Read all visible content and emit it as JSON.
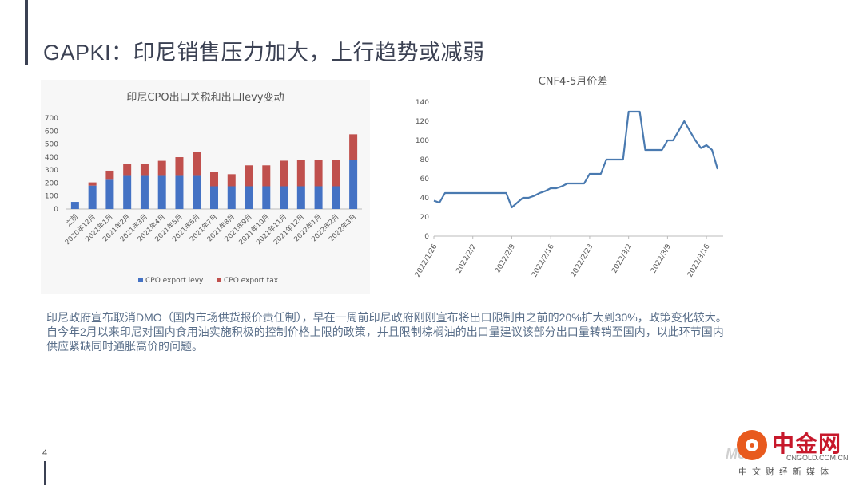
{
  "slide": {
    "title": "GAPKI：印尼销售压力加大，上行趋势或减弱",
    "page_number": "4",
    "paragraphs": [
      "印尼政府宣布取消DMO（国内市场供货报价责任制），早在一周前印尼政府刚刚宣布将出口限制由之前的20%扩大到30%，政策变化较大。",
      "自今年2月以来印尼对国内食用油实施积极的控制价格上限的政策，并且限制棕榈油的出口量建议该部分出口量转销至国内，以此环节国内",
      "供应紧缺同时通胀高价的问题。"
    ]
  },
  "logo": {
    "cn_name": "中金网",
    "watermark": "Mo",
    "url": "CNGOLD.COM.CN",
    "tagline": "中文财经新媒体"
  },
  "chart_data": [
    {
      "type": "bar",
      "title": "印尼CPO出口关税和出口levy变动",
      "categories": [
        "之前",
        "2020年12月",
        "2021年1月",
        "2021年2月",
        "2021年3月",
        "2021年4月",
        "2021年5月",
        "2021年6月",
        "2021年7月",
        "2021年8月",
        "2021年9月",
        "2021年10月",
        "2021年11月",
        "2021年12月",
        "2022年1月",
        "2022年2月",
        "2022年3月"
      ],
      "stacked": true,
      "series": [
        {
          "name": "CPO export levy",
          "color": "#4472c4",
          "values": [
            55,
            180,
            225,
            255,
            255,
            255,
            255,
            255,
            175,
            175,
            175,
            175,
            175,
            175,
            175,
            175,
            375
          ]
        },
        {
          "name": "CPO export tax",
          "color": "#c0504d",
          "values": [
            0,
            25,
            70,
            93,
            93,
            116,
            144,
            183,
            113,
            93,
            161,
            161,
            197,
            200,
            200,
            200,
            200
          ]
        }
      ],
      "yticks": [
        0,
        100,
        200,
        300,
        400,
        500,
        600,
        700
      ],
      "ylim": [
        0,
        700
      ],
      "legend_position": "bottom",
      "grid": false
    },
    {
      "type": "line",
      "title": "CNF4-5月价差",
      "xtick_labels": [
        "2022/1/26",
        "2022/2/2",
        "2022/2/9",
        "2022/2/16",
        "2022/2/23",
        "2022/3/2",
        "2022/3/9",
        "2022/3/16"
      ],
      "yticks": [
        0,
        20,
        40,
        60,
        80,
        100,
        120,
        140
      ],
      "ylim": [
        0,
        140
      ],
      "x_range_days": [
        0,
        52
      ],
      "series": [
        {
          "color": "#4a7ab0",
          "x": [
            0,
            1,
            2,
            3,
            4,
            5,
            6,
            7,
            8,
            9,
            10,
            11,
            12,
            13,
            14,
            15,
            16,
            17,
            18,
            19,
            20,
            21,
            22,
            23,
            24,
            25,
            26,
            27,
            28,
            29,
            30,
            31,
            32,
            33,
            34,
            35,
            36,
            37,
            38,
            39,
            40,
            41,
            42,
            43,
            44,
            45,
            46,
            47,
            48,
            49,
            50,
            51
          ],
          "y": [
            37,
            35,
            45,
            45,
            45,
            45,
            45,
            45,
            45,
            45,
            45,
            45,
            45,
            45,
            30,
            35,
            40,
            40,
            42,
            45,
            47,
            50,
            50,
            52,
            55,
            55,
            55,
            55,
            65,
            65,
            65,
            80,
            80,
            80,
            80,
            130,
            130,
            130,
            90,
            90,
            90,
            90,
            100,
            100,
            110,
            120,
            110,
            100,
            92,
            95,
            90,
            70
          ]
        }
      ],
      "grid": false
    }
  ]
}
